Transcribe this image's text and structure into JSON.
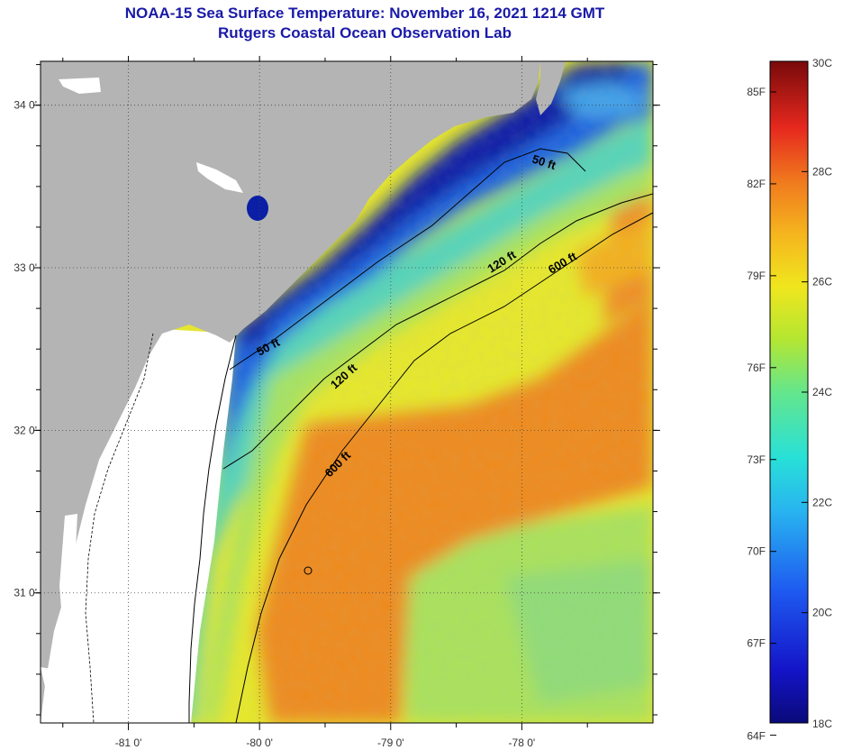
{
  "header": {
    "title": "NOAA-15 Sea Surface Temperature:  November 16, 2021 1214 GMT",
    "subtitle": "Rutgers Coastal Ocean Observation Lab"
  },
  "map": {
    "lat_labels": [
      "34 0'",
      "33 0'",
      "32 0'",
      "31 0'"
    ],
    "lat_values": [
      34,
      33,
      32,
      31
    ],
    "lon_labels": [
      "-81 0'",
      "-80 0'",
      "-79 0'",
      "-78 0'"
    ],
    "lon_values": [
      -81,
      -80,
      -79,
      -78
    ],
    "lon_range": [
      -81.67,
      -77.0
    ],
    "lat_range": [
      30.2,
      34.27
    ],
    "colors": {
      "land": "#b4b4b4",
      "no_data": "#ffffff",
      "grid": "#555555"
    },
    "contours": [
      {
        "label": "50 ft"
      },
      {
        "label": "50 ft"
      },
      {
        "label": "120 ft"
      },
      {
        "label": "120 ft"
      },
      {
        "label": "600 ft"
      },
      {
        "label": "600 ft"
      }
    ]
  },
  "colorbar": {
    "fahrenheit_labels": [
      "85F",
      "82F",
      "79F",
      "76F",
      "73F",
      "70F",
      "67F",
      "64F"
    ],
    "celsius_labels": [
      "30C",
      "28C",
      "26C",
      "24C",
      "22C",
      "20C",
      "18C"
    ],
    "range_c": [
      18,
      30
    ]
  }
}
